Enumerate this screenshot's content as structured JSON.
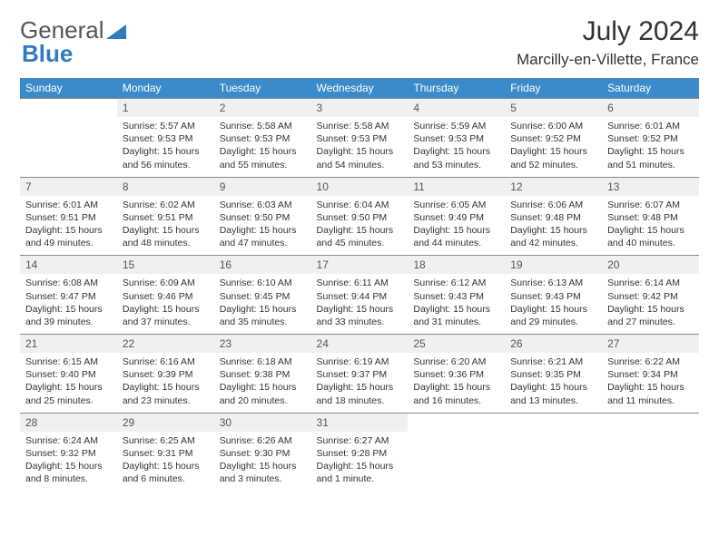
{
  "brand": {
    "part1": "General",
    "part2": "Blue"
  },
  "title": "July 2024",
  "location": "Marcilly-en-Villette, France",
  "colors": {
    "header_bg": "#3b8bca",
    "header_text": "#ffffff",
    "daynum_bg": "#eef0f2",
    "border": "#3b8bca",
    "brand_blue": "#2f7bbf"
  },
  "dayHeaders": [
    "Sunday",
    "Monday",
    "Tuesday",
    "Wednesday",
    "Thursday",
    "Friday",
    "Saturday"
  ],
  "weeks": [
    [
      null,
      {
        "d": "1",
        "sr": "5:57 AM",
        "ss": "9:53 PM",
        "dl": "15 hours and 56 minutes."
      },
      {
        "d": "2",
        "sr": "5:58 AM",
        "ss": "9:53 PM",
        "dl": "15 hours and 55 minutes."
      },
      {
        "d": "3",
        "sr": "5:58 AM",
        "ss": "9:53 PM",
        "dl": "15 hours and 54 minutes."
      },
      {
        "d": "4",
        "sr": "5:59 AM",
        "ss": "9:53 PM",
        "dl": "15 hours and 53 minutes."
      },
      {
        "d": "5",
        "sr": "6:00 AM",
        "ss": "9:52 PM",
        "dl": "15 hours and 52 minutes."
      },
      {
        "d": "6",
        "sr": "6:01 AM",
        "ss": "9:52 PM",
        "dl": "15 hours and 51 minutes."
      }
    ],
    [
      {
        "d": "7",
        "sr": "6:01 AM",
        "ss": "9:51 PM",
        "dl": "15 hours and 49 minutes."
      },
      {
        "d": "8",
        "sr": "6:02 AM",
        "ss": "9:51 PM",
        "dl": "15 hours and 48 minutes."
      },
      {
        "d": "9",
        "sr": "6:03 AM",
        "ss": "9:50 PM",
        "dl": "15 hours and 47 minutes."
      },
      {
        "d": "10",
        "sr": "6:04 AM",
        "ss": "9:50 PM",
        "dl": "15 hours and 45 minutes."
      },
      {
        "d": "11",
        "sr": "6:05 AM",
        "ss": "9:49 PM",
        "dl": "15 hours and 44 minutes."
      },
      {
        "d": "12",
        "sr": "6:06 AM",
        "ss": "9:48 PM",
        "dl": "15 hours and 42 minutes."
      },
      {
        "d": "13",
        "sr": "6:07 AM",
        "ss": "9:48 PM",
        "dl": "15 hours and 40 minutes."
      }
    ],
    [
      {
        "d": "14",
        "sr": "6:08 AM",
        "ss": "9:47 PM",
        "dl": "15 hours and 39 minutes."
      },
      {
        "d": "15",
        "sr": "6:09 AM",
        "ss": "9:46 PM",
        "dl": "15 hours and 37 minutes."
      },
      {
        "d": "16",
        "sr": "6:10 AM",
        "ss": "9:45 PM",
        "dl": "15 hours and 35 minutes."
      },
      {
        "d": "17",
        "sr": "6:11 AM",
        "ss": "9:44 PM",
        "dl": "15 hours and 33 minutes."
      },
      {
        "d": "18",
        "sr": "6:12 AM",
        "ss": "9:43 PM",
        "dl": "15 hours and 31 minutes."
      },
      {
        "d": "19",
        "sr": "6:13 AM",
        "ss": "9:43 PM",
        "dl": "15 hours and 29 minutes."
      },
      {
        "d": "20",
        "sr": "6:14 AM",
        "ss": "9:42 PM",
        "dl": "15 hours and 27 minutes."
      }
    ],
    [
      {
        "d": "21",
        "sr": "6:15 AM",
        "ss": "9:40 PM",
        "dl": "15 hours and 25 minutes."
      },
      {
        "d": "22",
        "sr": "6:16 AM",
        "ss": "9:39 PM",
        "dl": "15 hours and 23 minutes."
      },
      {
        "d": "23",
        "sr": "6:18 AM",
        "ss": "9:38 PM",
        "dl": "15 hours and 20 minutes."
      },
      {
        "d": "24",
        "sr": "6:19 AM",
        "ss": "9:37 PM",
        "dl": "15 hours and 18 minutes."
      },
      {
        "d": "25",
        "sr": "6:20 AM",
        "ss": "9:36 PM",
        "dl": "15 hours and 16 minutes."
      },
      {
        "d": "26",
        "sr": "6:21 AM",
        "ss": "9:35 PM",
        "dl": "15 hours and 13 minutes."
      },
      {
        "d": "27",
        "sr": "6:22 AM",
        "ss": "9:34 PM",
        "dl": "15 hours and 11 minutes."
      }
    ],
    [
      {
        "d": "28",
        "sr": "6:24 AM",
        "ss": "9:32 PM",
        "dl": "15 hours and 8 minutes."
      },
      {
        "d": "29",
        "sr": "6:25 AM",
        "ss": "9:31 PM",
        "dl": "15 hours and 6 minutes."
      },
      {
        "d": "30",
        "sr": "6:26 AM",
        "ss": "9:30 PM",
        "dl": "15 hours and 3 minutes."
      },
      {
        "d": "31",
        "sr": "6:27 AM",
        "ss": "9:28 PM",
        "dl": "15 hours and 1 minute."
      },
      null,
      null,
      null
    ]
  ],
  "labels": {
    "sunrise": "Sunrise:",
    "sunset": "Sunset:",
    "daylight": "Daylight:"
  }
}
